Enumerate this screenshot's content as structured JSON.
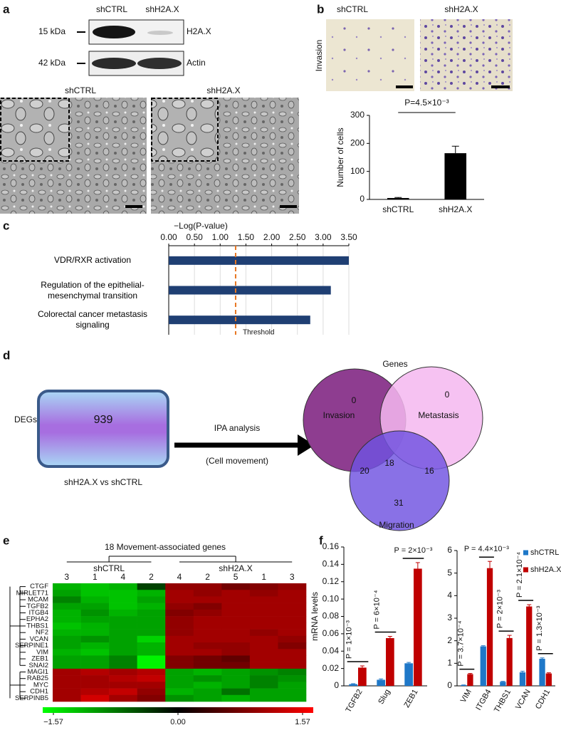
{
  "panel_labels": [
    "a",
    "b",
    "c",
    "d",
    "e",
    "f"
  ],
  "blot": {
    "columns": [
      "shCTRL",
      "shH2A.X"
    ],
    "rows": [
      {
        "marker": "15 kDa",
        "label": "H2A.X"
      },
      {
        "marker": "42 kDa",
        "label": "Actin"
      }
    ]
  },
  "micrographs": {
    "labels": [
      "shCTRL",
      "shH2A.X"
    ]
  },
  "invasion_images": {
    "axis_label": "Invasion",
    "labels": [
      "shCTRL",
      "shH2A.X"
    ]
  },
  "workflow": {
    "input_label": "DEGs",
    "count": 939,
    "comparison": "shH2A.X vs shCTRL",
    "step": "IPA analysis",
    "step_note": "(Cell movement)"
  },
  "venn": {
    "title": "Genes",
    "sets": {
      "invasion": "Invasion",
      "metastasis": "Metastasis",
      "migration": "Migration"
    },
    "counts": {
      "invasion_only": 0,
      "metastasis_only": 0,
      "migration_only": 31,
      "invasion_migration": 20,
      "all": 18,
      "metastasis_migration": 16
    }
  },
  "chart_data": [
    {
      "type": "bar",
      "y_label": "Number of cells",
      "categories": [
        "shCTRL",
        "shH2A.X"
      ],
      "values": [
        5,
        165
      ],
      "errors": [
        2,
        25
      ],
      "color": "#000000",
      "ylim": [
        0,
        300
      ],
      "yticks": [
        0,
        100,
        200,
        300
      ],
      "annotation": "P=4.5×10⁻³"
    },
    {
      "type": "hbar",
      "x_label": "−Log(P-value)",
      "categories": [
        "VDR/RXR activation",
        "Regulation of the epithelial-mesenchymal transition",
        "Colorectal cancer metastasis signaling"
      ],
      "values": [
        3.5,
        3.15,
        2.75
      ],
      "color": "#1f3f73",
      "xlim": [
        0,
        3.5
      ],
      "xticks": [
        {
          "value": 0,
          "label": "0.00"
        },
        {
          "value": 0.5,
          "label": "0.50"
        },
        {
          "value": 1,
          "label": "1.00"
        },
        {
          "value": 1.5,
          "label": "1.50"
        },
        {
          "value": 2,
          "label": "2.00"
        },
        {
          "value": 2.5,
          "label": "2.50"
        },
        {
          "value": 3,
          "label": "3.00"
        },
        {
          "value": 3.5,
          "label": "3.50"
        }
      ],
      "grid": true,
      "threshold": {
        "value": 1.3,
        "label": "Threshold",
        "color": "#e87722"
      }
    },
    {
      "type": "heatmap",
      "title": "18 Movement-associated genes",
      "groups": [
        {
          "name": "shCTRL",
          "samples": [
            "3",
            "1",
            "4",
            "2"
          ]
        },
        {
          "name": "shH2A.X",
          "samples": [
            "4",
            "2",
            "5",
            "1",
            "3"
          ]
        }
      ],
      "rows": [
        "CTGF",
        "MIRLET71",
        "MCAM",
        "TGFB2",
        "ITGB4",
        "EPHA2",
        "THBS1",
        "NF2",
        "VCAN",
        "SERPINE1",
        "VIM",
        "ZEB1",
        "SNAI2",
        "MAGI1",
        "RAB25",
        "MYC",
        "CDH1",
        "SERPINB5"
      ],
      "values": [
        [
          -1.1,
          -1.2,
          -1.1,
          -0.4,
          0.9,
          0.9,
          0.7,
          0.8,
          0.9
        ],
        [
          -1.0,
          -1.2,
          -1.2,
          -1.1,
          1.0,
          0.9,
          1.0,
          0.9,
          1.0
        ],
        [
          -0.8,
          -1.1,
          -1.2,
          -1.0,
          1.0,
          1.0,
          1.0,
          1.0,
          1.0
        ],
        [
          -1.0,
          -1.0,
          -1.2,
          -1.1,
          0.9,
          0.8,
          1.0,
          1.0,
          1.0
        ],
        [
          -1.1,
          -0.9,
          -1.1,
          -1.0,
          0.8,
          0.9,
          1.0,
          1.0,
          1.0
        ],
        [
          -1.1,
          -1.0,
          -1.0,
          -1.0,
          0.9,
          1.0,
          1.0,
          1.0,
          1.0
        ],
        [
          -1.2,
          -1.1,
          -1.0,
          -1.0,
          0.9,
          1.0,
          1.0,
          1.0,
          1.0
        ],
        [
          -1.1,
          -1.1,
          -1.0,
          -1.0,
          0.9,
          1.0,
          1.0,
          0.9,
          1.0
        ],
        [
          -1.0,
          -0.9,
          -1.0,
          -1.3,
          1.0,
          1.0,
          1.0,
          1.0,
          0.9
        ],
        [
          -1.0,
          -1.1,
          -1.0,
          -1.1,
          1.0,
          0.9,
          0.9,
          1.0,
          0.8
        ],
        [
          -1.1,
          -1.2,
          -1.0,
          -1.1,
          1.0,
          1.0,
          0.9,
          1.0,
          1.0
        ],
        [
          -1.0,
          -1.0,
          -0.8,
          -1.5,
          0.8,
          0.7,
          0.6,
          1.0,
          1.0
        ],
        [
          -1.0,
          -1.0,
          -0.8,
          -1.5,
          0.8,
          0.7,
          0.7,
          1.0,
          1.0
        ],
        [
          1.0,
          1.1,
          1.0,
          1.1,
          -1.0,
          -1.1,
          -1.0,
          -0.9,
          -0.8
        ],
        [
          1.0,
          1.0,
          1.1,
          1.2,
          -1.0,
          -0.9,
          -1.0,
          -0.8,
          -0.9
        ],
        [
          1.0,
          1.0,
          1.0,
          1.0,
          -1.0,
          -1.1,
          -1.0,
          -0.8,
          -1.0
        ],
        [
          1.0,
          1.1,
          1.2,
          0.9,
          -1.1,
          -1.0,
          -0.7,
          -1.0,
          -1.0
        ],
        [
          1.0,
          1.3,
          1.0,
          0.8,
          -0.9,
          -1.0,
          -1.1,
          -1.0,
          -1.0
        ]
      ],
      "zlim": [
        -1.57,
        1.57
      ],
      "zticks": [
        {
          "value": -1.57,
          "label": "−1.57"
        },
        {
          "value": 0,
          "label": "0.00"
        },
        1.57
      ],
      "colors": [
        "#00ff00",
        "#000000",
        "#ff0000"
      ]
    },
    {
      "type": "grouped_bar",
      "y_label": "mRNA levels",
      "categories": [
        "TGFB2",
        "Slug",
        "ZEB1"
      ],
      "series": [
        {
          "color": "#1f78c8",
          "values": [
            0.002,
            0.007,
            0.026
          ],
          "errors": [
            0.0005,
            0.001,
            0.001
          ]
        },
        {
          "color": "#c00000",
          "values": [
            0.021,
            0.055,
            0.135
          ],
          "errors": [
            0.002,
            0.002,
            0.007
          ]
        }
      ],
      "ylim": [
        0,
        0.16
      ],
      "yticks": [
        0,
        0.02,
        0.04,
        0.06,
        0.08,
        {
          "value": 0.1,
          "label": "0.10"
        },
        0.12,
        0.14,
        0.16
      ],
      "annotations": [
        {
          "category": "TGFB2",
          "text": "P = 1×10⁻³",
          "orientation": "vertical"
        },
        {
          "category": "Slug",
          "text": "P = 6×10⁻⁴",
          "orientation": "vertical"
        },
        {
          "category": "ZEB1",
          "text": "P = 2×10⁻³",
          "orientation": "horizontal"
        }
      ]
    },
    {
      "type": "grouped_bar",
      "categories": [
        "VIM",
        "ITGB4",
        "THBS1",
        "VCAN",
        "CDH1"
      ],
      "series": [
        {
          "name": "shCTRL",
          "color": "#1f78c8",
          "values": [
            0.03,
            1.75,
            0.18,
            0.6,
            1.2
          ],
          "errors": [
            0.01,
            0.03,
            0.02,
            0.05,
            0.04
          ]
        },
        {
          "name": "shH2A.X",
          "color": "#c00000",
          "values": [
            0.52,
            5.22,
            2.12,
            3.52,
            0.55
          ],
          "errors": [
            0.03,
            0.3,
            0.12,
            0.08,
            0.03
          ]
        }
      ],
      "ylim": [
        0,
        6
      ],
      "yticks": [
        0,
        1,
        2,
        3,
        4,
        5,
        6
      ],
      "legend": "top-right",
      "annotations": [
        {
          "category": "VIM",
          "text": "P = 3.7×10⁻⁴",
          "orientation": "vertical"
        },
        {
          "category": "ITGB4",
          "text": "P = 4.4×10⁻³",
          "orientation": "horizontal"
        },
        {
          "category": "THBS1",
          "text": "P = 2×10⁻³",
          "orientation": "vertical"
        },
        {
          "category": "VCAN",
          "text": "P = 2.1×10⁻⁴",
          "orientation": "vertical"
        },
        {
          "category": "CDH1",
          "text": "P = 1.3×10⁻³",
          "orientation": "vertical"
        }
      ]
    }
  ]
}
